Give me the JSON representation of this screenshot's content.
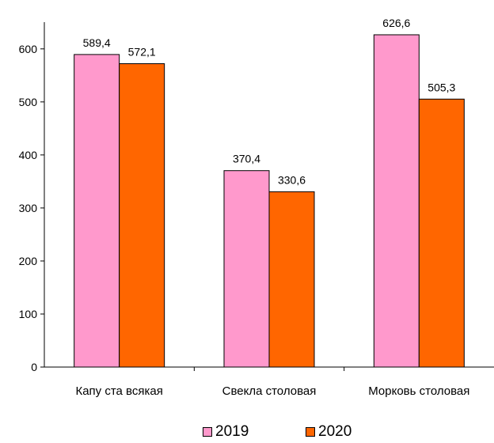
{
  "chart_data": {
    "type": "bar",
    "categories": [
      "Капу ста всякая",
      "Свекла столовая",
      "Морковь столовая"
    ],
    "series": [
      {
        "name": "2019",
        "values": [
          589.4,
          370.4,
          626.6
        ],
        "labels": [
          "589,4",
          "370,4",
          "626,6"
        ],
        "color": "#ff99cc"
      },
      {
        "name": "2020",
        "values": [
          572.1,
          330.6,
          505.3
        ],
        "labels": [
          "572,1",
          "330,6",
          "505,3"
        ],
        "color": "#ff6600"
      }
    ],
    "ylim": [
      0,
      700
    ],
    "yticks": [
      0,
      100,
      200,
      300,
      400,
      500,
      600
    ],
    "ytick_labels": [
      "0",
      "100",
      "200",
      "300",
      "400",
      "500",
      "600"
    ],
    "grid": false,
    "legend_position": "bottom",
    "xlabel": "",
    "ylabel": "",
    "title": ""
  }
}
